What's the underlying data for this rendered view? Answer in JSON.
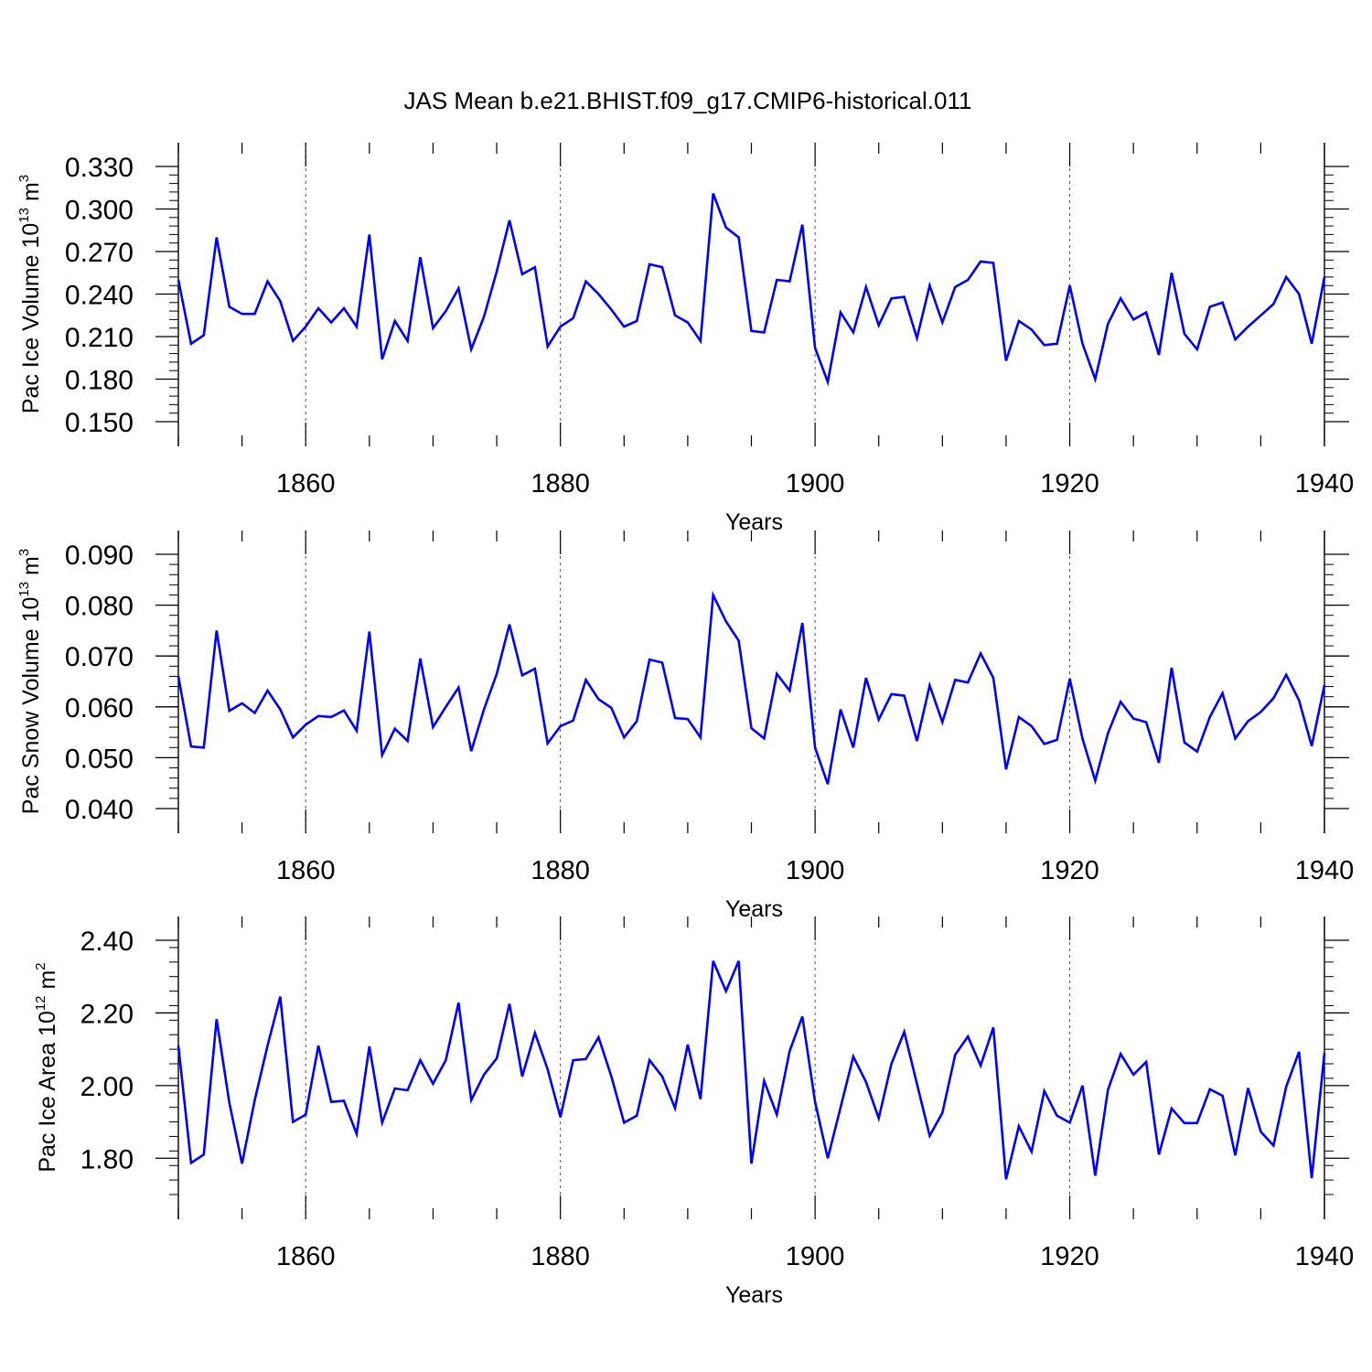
{
  "title": "JAS Mean b.e21.BHIST.f09_g17.CMIP6-historical.011",
  "line_color": "#0000ff",
  "chart_data": [
    {
      "type": "line",
      "ylabel": {
        "base": "Pac Ice Volume 10",
        "exp": "13",
        "unit": " m",
        "unit_exp": "3"
      },
      "xlabel": "Years",
      "xlim": [
        1850,
        1940
      ],
      "ylim": [
        0.15,
        0.33
      ],
      "yticks": [
        0.15,
        0.18,
        0.21,
        0.24,
        0.27,
        0.3,
        0.33
      ],
      "yticklabels": [
        "0.150",
        "0.180",
        "0.210",
        "0.240",
        "0.270",
        "0.300",
        "0.330"
      ],
      "xticks": [
        1860,
        1880,
        1900,
        1920,
        1940
      ],
      "xticklabels": [
        "1860",
        "1880",
        "1900",
        "1920",
        "1940"
      ],
      "grid": "dashed vertical at major x ticks",
      "series": [
        {
          "x_start": 1850,
          "values": [
            0.25,
            0.205,
            0.211,
            0.28,
            0.231,
            0.226,
            0.226,
            0.249,
            0.235,
            0.207,
            0.217,
            0.23,
            0.22,
            0.23,
            0.217,
            0.282,
            0.194,
            0.221,
            0.207,
            0.266,
            0.216,
            0.228,
            0.244,
            0.201,
            0.224,
            0.256,
            0.292,
            0.254,
            0.259,
            0.203,
            0.217,
            0.223,
            0.249,
            0.24,
            0.229,
            0.217,
            0.221,
            0.261,
            0.259,
            0.225,
            0.22,
            0.207,
            0.311,
            0.287,
            0.28,
            0.214,
            0.213,
            0.25,
            0.249,
            0.289,
            0.202,
            0.178,
            0.227,
            0.213,
            0.245,
            0.218,
            0.237,
            0.238,
            0.209,
            0.246,
            0.22,
            0.245,
            0.25,
            0.263,
            0.262,
            0.193,
            0.221,
            0.215,
            0.204,
            0.205,
            0.246,
            0.205,
            0.18,
            0.219,
            0.237,
            0.222,
            0.227,
            0.197,
            0.255,
            0.212,
            0.201,
            0.231,
            0.234,
            0.208,
            0.217,
            0.225,
            0.233,
            0.252,
            0.24,
            0.205,
            0.252
          ]
        }
      ]
    },
    {
      "type": "line",
      "ylabel": {
        "base": "Pac Snow Volume 10",
        "exp": "13",
        "unit": " m",
        "unit_exp": "3"
      },
      "xlabel": "Years",
      "xlim": [
        1850,
        1940
      ],
      "ylim": [
        0.04,
        0.09
      ],
      "yticks": [
        0.04,
        0.05,
        0.06,
        0.07,
        0.08,
        0.09
      ],
      "yticklabels": [
        "0.040",
        "0.050",
        "0.060",
        "0.070",
        "0.080",
        "0.090"
      ],
      "xticks": [
        1860,
        1880,
        1900,
        1920,
        1940
      ],
      "xticklabels": [
        "1860",
        "1880",
        "1900",
        "1920",
        "1940"
      ],
      "grid": "dashed vertical at major x ticks",
      "series": [
        {
          "x_start": 1850,
          "values": [
            0.066,
            0.0522,
            0.052,
            0.075,
            0.0592,
            0.0607,
            0.0588,
            0.0632,
            0.0595,
            0.054,
            0.0565,
            0.0582,
            0.058,
            0.0593,
            0.0553,
            0.0748,
            0.0505,
            0.0557,
            0.0533,
            0.0695,
            0.056,
            0.06,
            0.0638,
            0.0513,
            0.0595,
            0.0665,
            0.0762,
            0.0662,
            0.0675,
            0.0528,
            0.0562,
            0.0573,
            0.0653,
            0.0615,
            0.0598,
            0.054,
            0.0572,
            0.0693,
            0.0687,
            0.0578,
            0.0576,
            0.054,
            0.082,
            0.0768,
            0.073,
            0.0558,
            0.0538,
            0.0665,
            0.0632,
            0.0765,
            0.052,
            0.0448,
            0.0595,
            0.052,
            0.0657,
            0.0575,
            0.0625,
            0.0622,
            0.0533,
            0.0642,
            0.057,
            0.0653,
            0.0648,
            0.0705,
            0.0657,
            0.0477,
            0.058,
            0.0562,
            0.0527,
            0.0535,
            0.0655,
            0.0537,
            0.0455,
            0.0548,
            0.061,
            0.0577,
            0.057,
            0.049,
            0.0677,
            0.053,
            0.0512,
            0.058,
            0.0627,
            0.0538,
            0.0572,
            0.059,
            0.0617,
            0.0663,
            0.0613,
            0.0523,
            0.0643
          ]
        }
      ]
    },
    {
      "type": "line",
      "ylabel": {
        "base": "Pac Ice Area 10",
        "exp": "12",
        "unit": " m",
        "unit_exp": "2"
      },
      "xlabel": "Years",
      "xlim": [
        1850,
        1940
      ],
      "ylim": [
        1.7,
        2.4
      ],
      "yticks": [
        1.8,
        2.0,
        2.2,
        2.4
      ],
      "yticklabels": [
        "1.80",
        "2.00",
        "2.20",
        "2.40"
      ],
      "xticks": [
        1860,
        1880,
        1900,
        1920,
        1940
      ],
      "xticklabels": [
        "1860",
        "1880",
        "1900",
        "1920",
        "1940"
      ],
      "grid": "dashed vertical at major x ticks",
      "series": [
        {
          "x_start": 1850,
          "values": [
            2.11,
            1.787,
            1.81,
            2.183,
            1.953,
            1.785,
            1.96,
            2.11,
            2.245,
            1.9,
            1.92,
            2.11,
            1.955,
            1.958,
            1.867,
            2.108,
            1.898,
            1.992,
            1.987,
            2.07,
            2.005,
            2.07,
            2.228,
            1.96,
            2.03,
            2.075,
            2.225,
            2.025,
            2.145,
            2.045,
            1.913,
            2.07,
            2.073,
            2.133,
            2.025,
            1.898,
            1.917,
            2.07,
            2.025,
            1.938,
            2.113,
            1.963,
            2.343,
            2.26,
            2.343,
            1.785,
            2.013,
            1.92,
            2.095,
            2.19,
            1.955,
            1.8,
            1.94,
            2.08,
            2.01,
            1.91,
            2.06,
            2.148,
            2.005,
            1.862,
            1.925,
            2.085,
            2.135,
            2.055,
            2.16,
            1.742,
            1.888,
            1.818,
            1.985,
            1.917,
            1.898,
            2.0,
            1.752,
            1.988,
            2.087,
            2.03,
            2.065,
            1.81,
            1.937,
            1.897,
            1.897,
            1.99,
            1.972,
            1.808,
            1.993,
            1.873,
            1.835,
            1.997,
            2.093,
            1.745,
            2.09
          ]
        }
      ]
    }
  ]
}
